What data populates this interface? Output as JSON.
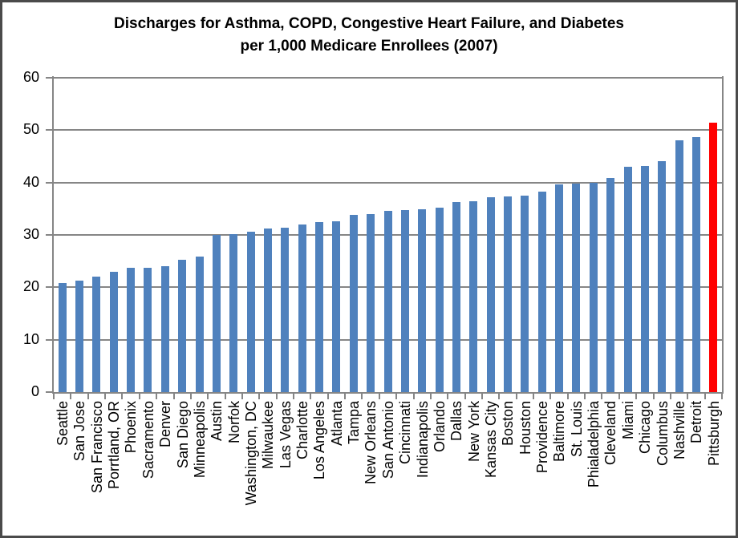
{
  "title": {
    "line1": "Discharges for Asthma, COPD, Congestive Heart Failure, and Diabetes",
    "line2": "per 1,000 Medicare Enrollees (2007)"
  },
  "colors": {
    "bar": "#4F81BD",
    "highlight": "#FF0000",
    "gridline": "#868686",
    "text": "#000000",
    "frame_border": "#4a4a4a"
  },
  "chart_data": {
    "type": "bar",
    "title": "Discharges for Asthma, COPD, Congestive Heart Failure, and Diabetes per 1,000 Medicare Enrollees (2007)",
    "xlabel": "",
    "ylabel": "",
    "ylim": [
      0,
      60
    ],
    "yticks": [
      0,
      10,
      20,
      30,
      40,
      50,
      60
    ],
    "grid": true,
    "legend": "none",
    "bar_color": "#4F81BD",
    "highlight": {
      "category": "Pittsburgh",
      "color": "#FF0000"
    },
    "categories": [
      "Seattle",
      "San Jose",
      "San Francisco",
      "Porrtland, OR",
      "Phoenix",
      "Sacramento",
      "Denver",
      "San Diego",
      "Minneapolis",
      "Austin",
      "Norfok",
      "Washington, DC",
      "Milwaukee",
      "Las Vegas",
      "Charlotte",
      "Los Angeles",
      "Atlanta",
      "Tampa",
      "New Orleans",
      "San Antonio",
      "Cincinnati",
      "Indianapolis",
      "Orlando",
      "Dallas",
      "New York",
      "Kansas City",
      "Boston",
      "Houston",
      "Providence",
      "Baltimore",
      "St. Louis",
      "Phialadelphia",
      "Cleveland",
      "Miami",
      "Chicago",
      "Columbus",
      "Nashville",
      "Detroit",
      "Pittsburgh"
    ],
    "values": [
      20.8,
      21.3,
      22.0,
      23.0,
      23.8,
      23.8,
      24.0,
      25.2,
      25.8,
      30.0,
      30.2,
      30.6,
      31.2,
      31.4,
      32.0,
      32.4,
      32.6,
      33.9,
      34.0,
      34.6,
      34.7,
      34.9,
      35.2,
      36.2,
      36.5,
      37.2,
      37.4,
      37.5,
      38.3,
      39.6,
      39.8,
      40.0,
      40.8,
      43.0,
      43.2,
      44.1,
      48.0,
      48.6,
      51.4
    ]
  }
}
